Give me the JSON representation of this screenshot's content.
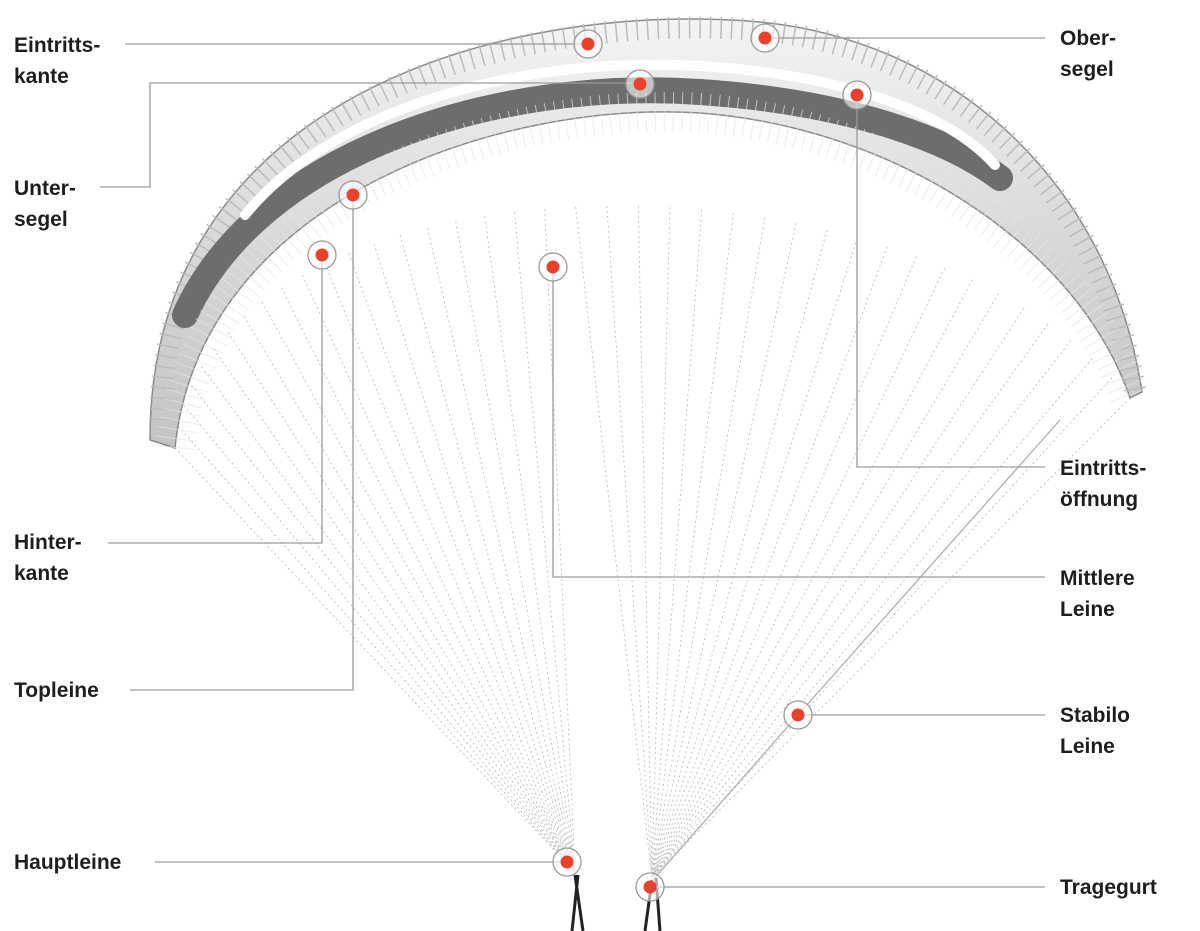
{
  "labels": [
    {
      "lines": [
        "Eintritts-",
        "kante"
      ]
    },
    {
      "lines": [
        "Unter-",
        "segel"
      ]
    },
    {
      "lines": [
        "Hinter-",
        "kante"
      ]
    },
    {
      "lines": [
        "Topleine"
      ]
    },
    {
      "lines": [
        "Hauptleine"
      ]
    },
    {
      "lines": [
        "Ober-",
        "segel"
      ]
    },
    {
      "lines": [
        "Eintritts-",
        "öffnung"
      ]
    },
    {
      "lines": [
        "Mittlere",
        "Leine"
      ]
    },
    {
      "lines": [
        "Stabilo",
        "Leine"
      ]
    },
    {
      "lines": [
        "Tragegurt"
      ]
    }
  ]
}
